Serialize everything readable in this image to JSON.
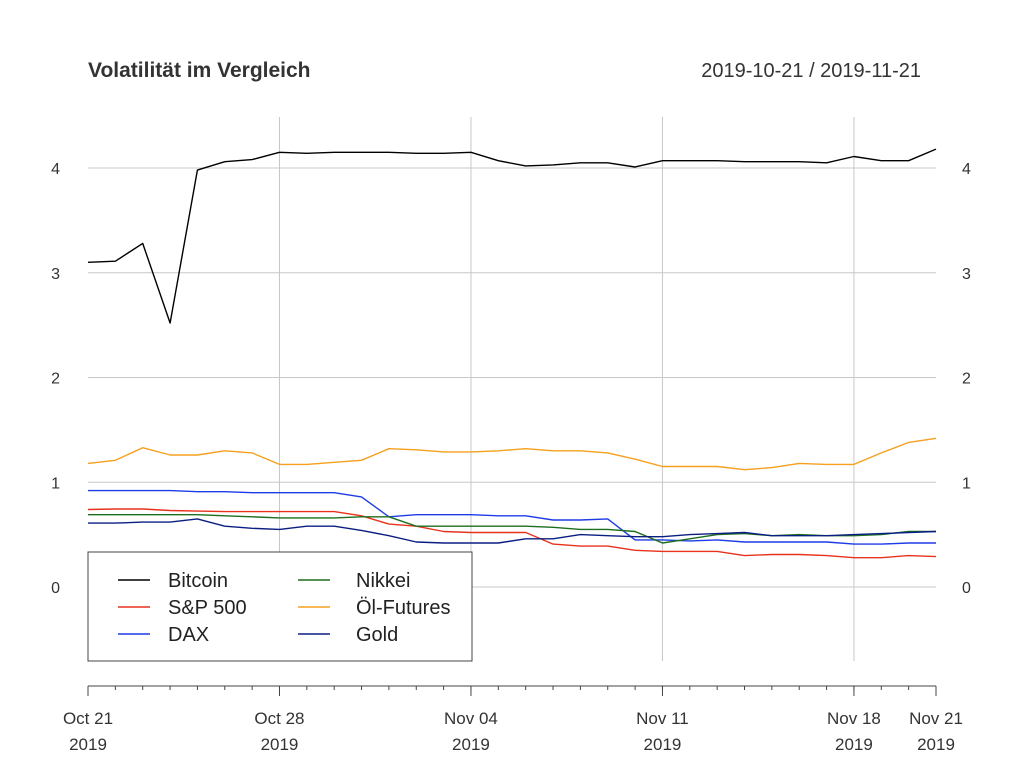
{
  "chart_data": {
    "type": "line",
    "title": "Volatilität im Vergleich",
    "date_range": "2019-10-21 / 2019-11-21",
    "xlabel": "",
    "ylabel": "",
    "x_start": "2019-10-21",
    "x_end": "2019-11-21",
    "ylim": [
      -0.7,
      4.5
    ],
    "yticks": [
      0,
      1,
      2,
      3,
      4
    ],
    "xticks": [
      {
        "date": "2019-10-21",
        "line1": "Oct 21",
        "line2": "2019"
      },
      {
        "date": "2019-10-28",
        "line1": "Oct 28",
        "line2": "2019"
      },
      {
        "date": "2019-11-04",
        "line1": "Nov 04",
        "line2": "2019"
      },
      {
        "date": "2019-11-11",
        "line1": "Nov 11",
        "line2": "2019"
      },
      {
        "date": "2019-11-18",
        "line1": "Nov 18",
        "line2": "2019"
      },
      {
        "date": "2019-11-21",
        "line1": "Nov 21",
        "line2": "2019"
      }
    ],
    "grid": true,
    "legend_position": "bottom-left",
    "dates": [
      "2019-10-21",
      "2019-10-22",
      "2019-10-23",
      "2019-10-24",
      "2019-10-25",
      "2019-10-26",
      "2019-10-27",
      "2019-10-28",
      "2019-10-29",
      "2019-10-30",
      "2019-10-31",
      "2019-11-01",
      "2019-11-02",
      "2019-11-03",
      "2019-11-04",
      "2019-11-05",
      "2019-11-06",
      "2019-11-07",
      "2019-11-08",
      "2019-11-09",
      "2019-11-10",
      "2019-11-11",
      "2019-11-12",
      "2019-11-13",
      "2019-11-14",
      "2019-11-15",
      "2019-11-16",
      "2019-11-17",
      "2019-11-18",
      "2019-11-19",
      "2019-11-20",
      "2019-11-21"
    ],
    "series": [
      {
        "name": "Bitcoin",
        "color": "#000000",
        "values": [
          3.1,
          3.11,
          3.28,
          2.52,
          3.98,
          4.06,
          4.08,
          4.15,
          4.14,
          4.15,
          4.15,
          4.15,
          4.14,
          4.14,
          4.15,
          4.07,
          4.02,
          4.03,
          4.05,
          4.05,
          4.01,
          4.07,
          4.07,
          4.07,
          4.06,
          4.06,
          4.06,
          4.05,
          4.11,
          4.07,
          4.07,
          4.18
        ]
      },
      {
        "name": "S&P 500",
        "color": "#e8321e",
        "values": [
          0.74,
          0.745,
          0.745,
          0.73,
          0.725,
          0.72,
          0.72,
          0.72,
          0.72,
          0.72,
          0.68,
          0.6,
          0.58,
          0.53,
          0.52,
          0.52,
          0.52,
          0.41,
          0.39,
          0.39,
          0.35,
          0.34,
          0.34,
          0.34,
          0.3,
          0.31,
          0.31,
          0.3,
          0.28,
          0.28,
          0.3,
          0.29
        ]
      },
      {
        "name": "DAX",
        "color": "#1e3ce6",
        "values": [
          0.92,
          0.92,
          0.92,
          0.92,
          0.91,
          0.91,
          0.9,
          0.9,
          0.9,
          0.9,
          0.86,
          0.67,
          0.69,
          0.69,
          0.69,
          0.68,
          0.68,
          0.64,
          0.64,
          0.65,
          0.45,
          0.45,
          0.44,
          0.45,
          0.43,
          0.43,
          0.43,
          0.43,
          0.41,
          0.41,
          0.42,
          0.42
        ]
      },
      {
        "name": "Nikkei",
        "color": "#1e6e1e",
        "values": [
          0.69,
          0.69,
          0.69,
          0.69,
          0.69,
          0.68,
          0.67,
          0.66,
          0.66,
          0.66,
          0.67,
          0.67,
          0.58,
          0.58,
          0.58,
          0.58,
          0.58,
          0.57,
          0.55,
          0.55,
          0.53,
          0.42,
          0.46,
          0.5,
          0.51,
          0.49,
          0.5,
          0.49,
          0.49,
          0.5,
          0.53,
          0.53
        ]
      },
      {
        "name": "Öl-Futures",
        "color": "#f5a01e",
        "values": [
          1.18,
          1.21,
          1.33,
          1.26,
          1.26,
          1.3,
          1.28,
          1.17,
          1.17,
          1.19,
          1.21,
          1.32,
          1.31,
          1.29,
          1.29,
          1.3,
          1.32,
          1.3,
          1.3,
          1.28,
          1.22,
          1.15,
          1.15,
          1.15,
          1.12,
          1.14,
          1.18,
          1.17,
          1.17,
          1.28,
          1.38,
          1.42
        ]
      },
      {
        "name": "Gold",
        "color": "#0a1e82",
        "values": [
          0.61,
          0.61,
          0.62,
          0.62,
          0.65,
          0.58,
          0.56,
          0.55,
          0.58,
          0.58,
          0.54,
          0.49,
          0.43,
          0.42,
          0.42,
          0.42,
          0.46,
          0.46,
          0.5,
          0.49,
          0.48,
          0.48,
          0.5,
          0.51,
          0.52,
          0.49,
          0.49,
          0.49,
          0.5,
          0.51,
          0.52,
          0.53
        ]
      }
    ]
  }
}
